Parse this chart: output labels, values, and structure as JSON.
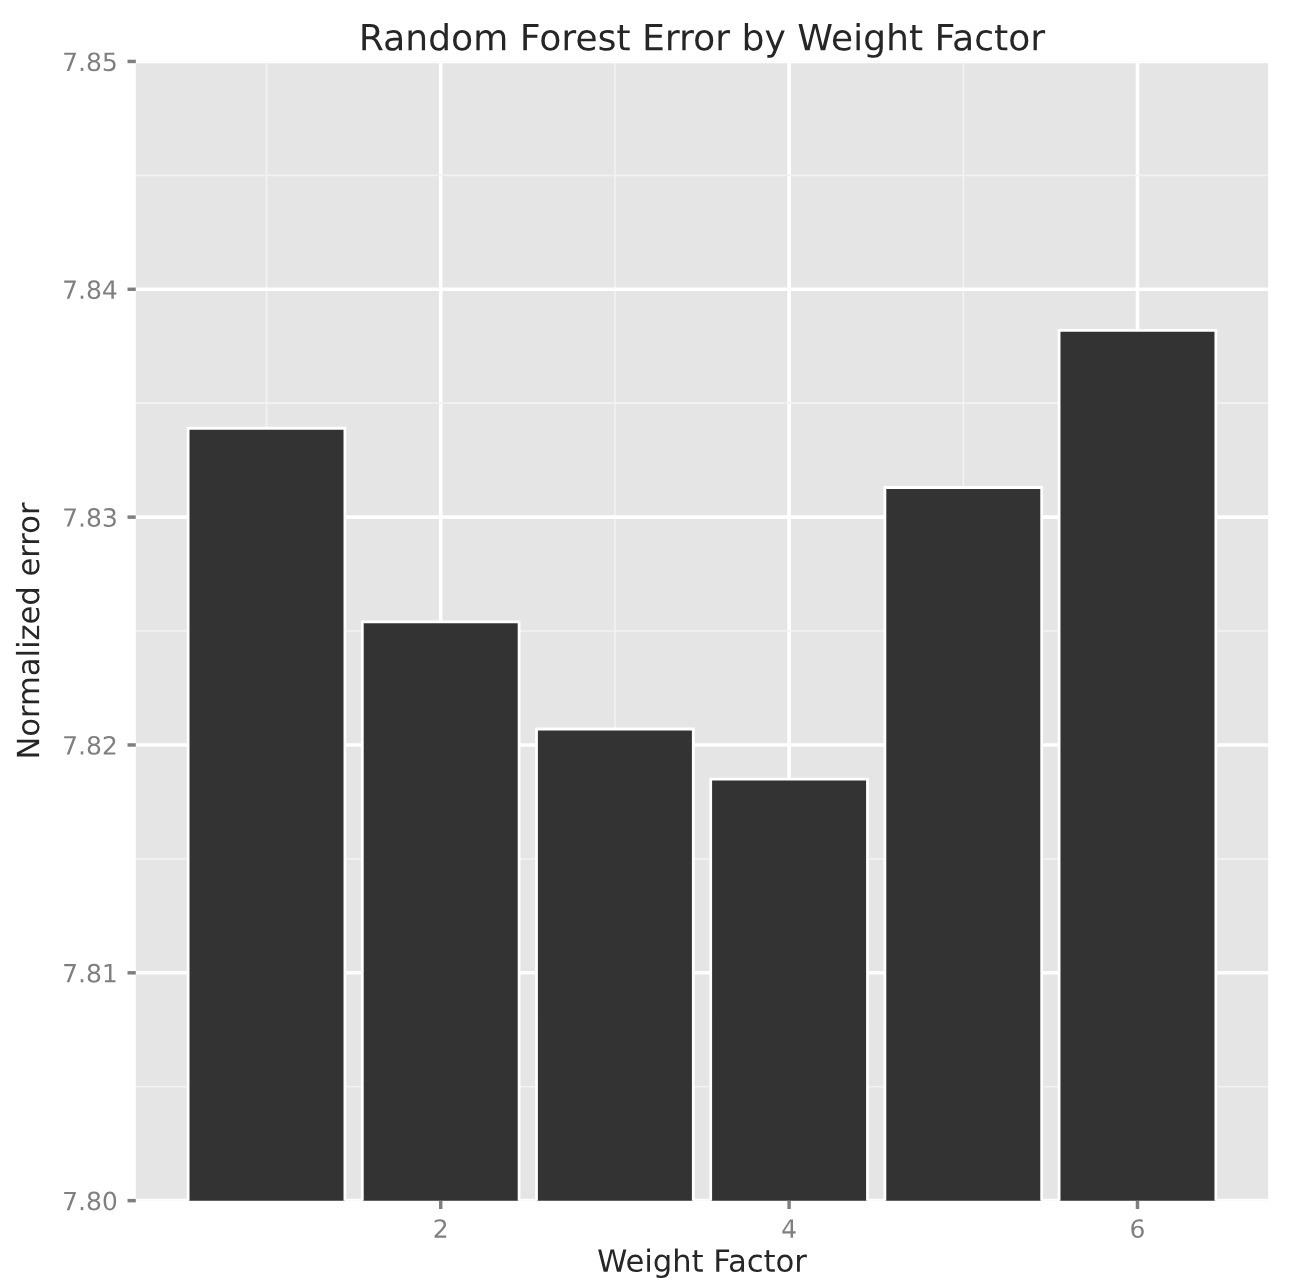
{
  "chart_data": {
    "type": "bar",
    "title": "Random Forest Error by Weight Factor",
    "xlabel": "Weight Factor",
    "ylabel": "Normalized error",
    "x": [
      1,
      2,
      3,
      4,
      5,
      6
    ],
    "series": [
      {
        "color": "#333333",
        "values": [
          7.8339,
          7.8254,
          7.8207,
          7.8185,
          7.8313,
          7.8382
        ]
      }
    ],
    "xlim": [
      0.25,
      6.75
    ],
    "xticks": [
      2,
      4,
      6
    ],
    "ylim": [
      7.8,
      7.85
    ],
    "yticks": [
      {
        "value": 7.8,
        "label": "7.80"
      },
      7.81,
      7.82,
      7.83,
      7.84,
      7.85
    ],
    "grid": true
  }
}
